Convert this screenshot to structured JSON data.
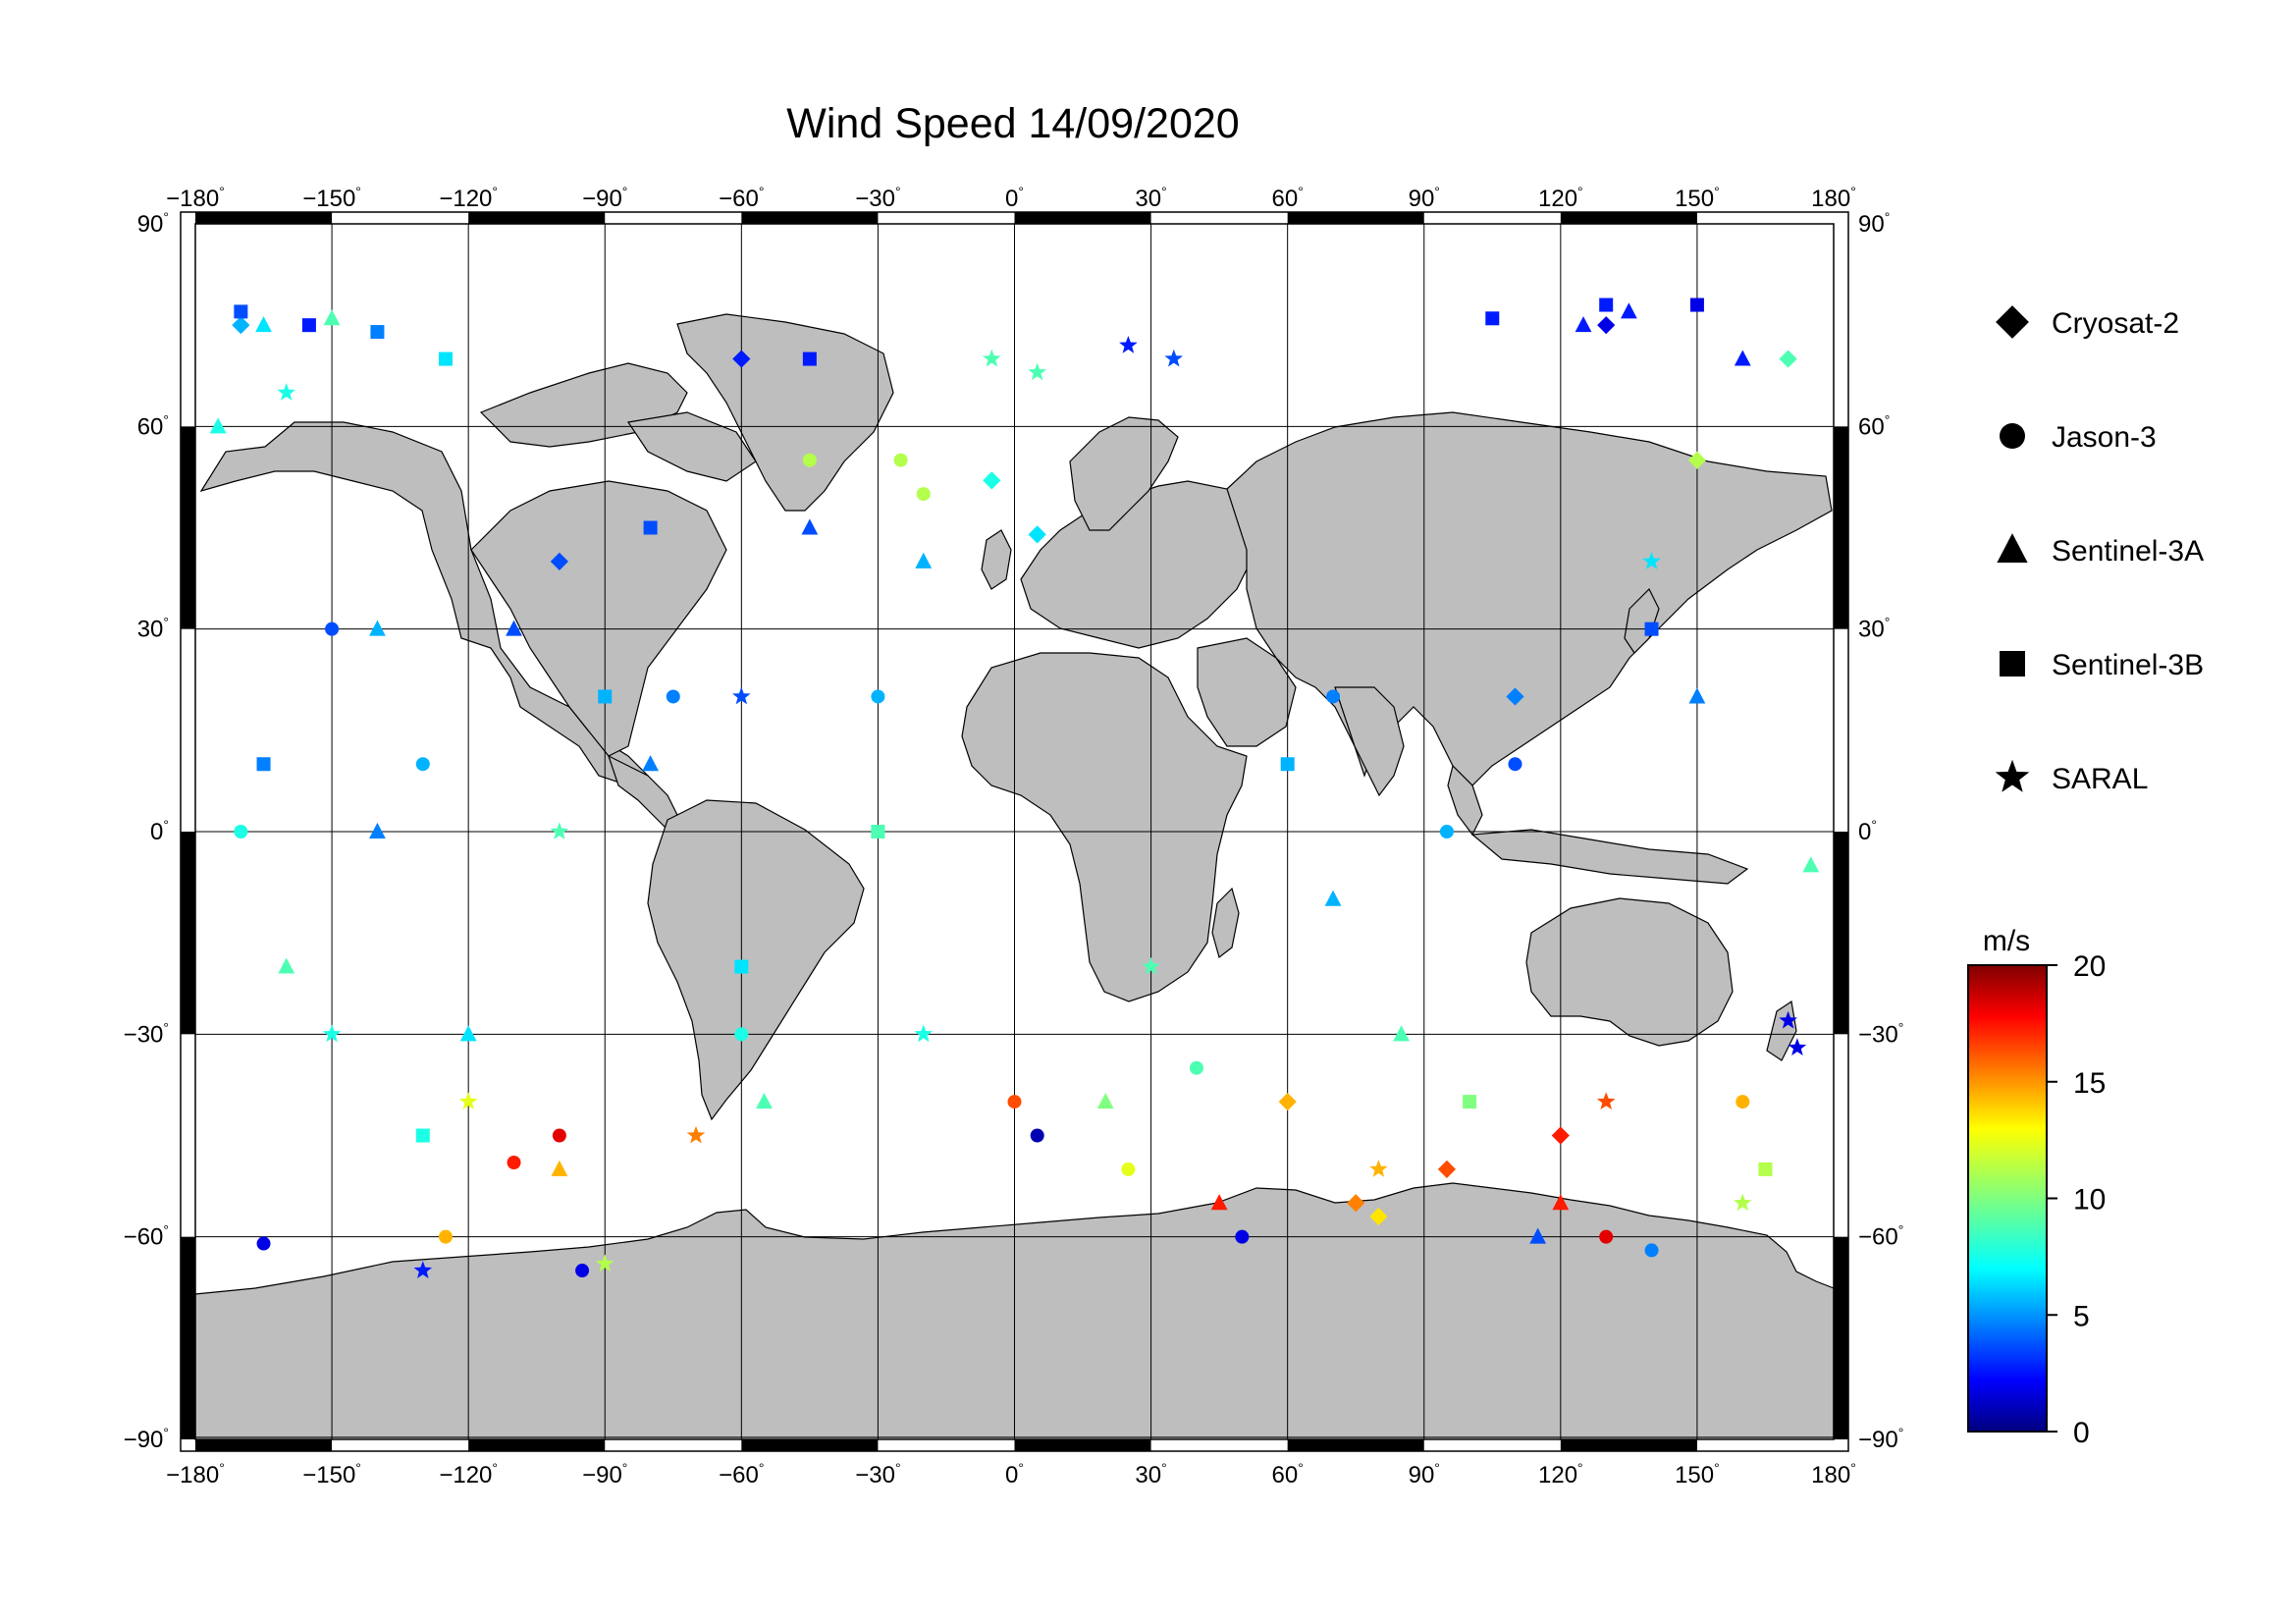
{
  "title": "Wind Speed 14/09/2020",
  "x_tick_labels": [
    "−180",
    "−150",
    "−120",
    "−90",
    "−60",
    "−30",
    "0",
    "30",
    "60",
    "90",
    "120",
    "150",
    "180"
  ],
  "y_tick_labels_left": [
    "90",
    "60",
    "30",
    "0",
    "−30",
    "−60",
    "−90"
  ],
  "y_tick_labels_right": [
    "90",
    "60",
    "30",
    "0",
    "−30",
    "−60",
    "−90"
  ],
  "degree_symbol": "°",
  "legend": [
    {
      "label": "Cryosat-2",
      "symbol": "diamond"
    },
    {
      "label": "Jason-3",
      "symbol": "circle"
    },
    {
      "label": "Sentinel-3A",
      "symbol": "triangle"
    },
    {
      "label": "Sentinel-3B",
      "symbol": "square"
    },
    {
      "label": "SARAL",
      "symbol": "star"
    }
  ],
  "colorbar": {
    "unit": "m/s",
    "ticks": [
      "20",
      "15",
      "10",
      "5",
      "0"
    ],
    "range": [
      0,
      20
    ],
    "colormap": "jet"
  },
  "colors": {
    "land": "#bebebe",
    "ocean": "#ffffff",
    "frame": "#000000"
  },
  "chart_data": {
    "type": "scatter",
    "title": "Wind Speed 14/09/2020",
    "projection": "equirectangular",
    "xlabel": "",
    "ylabel": "",
    "xlim": [
      -180,
      180
    ],
    "ylim": [
      -90,
      90
    ],
    "xticks": [
      -180,
      -150,
      -120,
      -90,
      -60,
      -30,
      0,
      30,
      60,
      90,
      120,
      150,
      180
    ],
    "yticks": [
      -90,
      -60,
      -30,
      0,
      30,
      60,
      90
    ],
    "grid": true,
    "legend_position": "right",
    "colorbar_label": "m/s",
    "colorbar_range": [
      0,
      20
    ],
    "series": [
      {
        "name": "Cryosat-2",
        "marker": "diamond",
        "points": [
          [
            -5,
            52,
            8
          ],
          [
            5,
            44,
            7
          ],
          [
            60,
            -40,
            14
          ],
          [
            75,
            -55,
            15
          ],
          [
            80,
            -57,
            13
          ],
          [
            95,
            -50,
            16
          ],
          [
            110,
            20,
            5
          ],
          [
            120,
            -45,
            17
          ],
          [
            150,
            55,
            11
          ],
          [
            170,
            70,
            9
          ],
          [
            -170,
            75,
            6
          ],
          [
            -100,
            40,
            4
          ],
          [
            -60,
            70,
            3
          ],
          [
            130,
            75,
            2
          ]
        ]
      },
      {
        "name": "Jason-3",
        "marker": "circle",
        "points": [
          [
            -165,
            -61,
            2
          ],
          [
            -125,
            -60,
            14
          ],
          [
            -110,
            -49,
            17
          ],
          [
            -100,
            -45,
            18
          ],
          [
            -95,
            -65,
            2
          ],
          [
            -75,
            20,
            5
          ],
          [
            -60,
            -30,
            8
          ],
          [
            -45,
            55,
            11
          ],
          [
            -25,
            55,
            11
          ],
          [
            -20,
            50,
            11
          ],
          [
            0,
            -40,
            16
          ],
          [
            5,
            -45,
            1
          ],
          [
            25,
            -50,
            12
          ],
          [
            40,
            -35,
            9
          ],
          [
            50,
            -60,
            2
          ],
          [
            95,
            0,
            6
          ],
          [
            110,
            10,
            4
          ],
          [
            130,
            -60,
            18
          ],
          [
            140,
            -62,
            5
          ],
          [
            160,
            -40,
            14
          ],
          [
            -150,
            30,
            4
          ],
          [
            -170,
            0,
            8
          ],
          [
            -130,
            10,
            6
          ],
          [
            -30,
            20,
            6
          ],
          [
            70,
            20,
            5
          ]
        ]
      },
      {
        "name": "Sentinel-3A",
        "marker": "triangle",
        "points": [
          [
            -165,
            75,
            7
          ],
          [
            -150,
            76,
            9
          ],
          [
            -175,
            60,
            8
          ],
          [
            -160,
            -20,
            9
          ],
          [
            -140,
            30,
            6
          ],
          [
            -120,
            -30,
            7
          ],
          [
            -100,
            -50,
            14
          ],
          [
            -80,
            10,
            5
          ],
          [
            -55,
            -40,
            9
          ],
          [
            -20,
            40,
            6
          ],
          [
            20,
            -40,
            10
          ],
          [
            45,
            -55,
            17
          ],
          [
            70,
            -10,
            6
          ],
          [
            115,
            -60,
            4
          ],
          [
            120,
            -55,
            17
          ],
          [
            135,
            77,
            3
          ],
          [
            125,
            75,
            3
          ],
          [
            160,
            70,
            3
          ],
          [
            175,
            -5,
            9
          ],
          [
            -45,
            45,
            4
          ],
          [
            -140,
            0,
            5
          ],
          [
            -110,
            30,
            4
          ],
          [
            85,
            -30,
            9
          ],
          [
            150,
            20,
            5
          ]
        ]
      },
      {
        "name": "Sentinel-3B",
        "marker": "square",
        "points": [
          [
            -170,
            77,
            4
          ],
          [
            -155,
            75,
            3
          ],
          [
            -140,
            74,
            5
          ],
          [
            -125,
            70,
            7
          ],
          [
            -45,
            70,
            3
          ],
          [
            105,
            76,
            3
          ],
          [
            130,
            78,
            3
          ],
          [
            150,
            78,
            2
          ],
          [
            -165,
            10,
            5
          ],
          [
            -130,
            -45,
            8
          ],
          [
            -90,
            20,
            6
          ],
          [
            -60,
            -20,
            7
          ],
          [
            -30,
            0,
            9
          ],
          [
            60,
            10,
            6
          ],
          [
            100,
            -40,
            10
          ],
          [
            140,
            30,
            4
          ],
          [
            165,
            -50,
            11
          ],
          [
            -80,
            45,
            4
          ]
        ]
      },
      {
        "name": "SARAL",
        "marker": "star",
        "points": [
          [
            -130,
            -65,
            3
          ],
          [
            -90,
            -64,
            11
          ],
          [
            -160,
            65,
            8
          ],
          [
            -5,
            70,
            9
          ],
          [
            5,
            68,
            9
          ],
          [
            25,
            72,
            3
          ],
          [
            35,
            70,
            4
          ],
          [
            170,
            -28,
            2
          ],
          [
            172,
            -32,
            2
          ],
          [
            130,
            -40,
            16
          ],
          [
            -120,
            -40,
            12
          ],
          [
            -70,
            -45,
            15
          ],
          [
            -20,
            -30,
            8
          ],
          [
            30,
            -20,
            9
          ],
          [
            80,
            -50,
            14
          ],
          [
            160,
            -55,
            11
          ],
          [
            -100,
            0,
            9
          ],
          [
            -60,
            20,
            4
          ],
          [
            140,
            40,
            7
          ],
          [
            -150,
            -30,
            8
          ]
        ]
      }
    ]
  }
}
